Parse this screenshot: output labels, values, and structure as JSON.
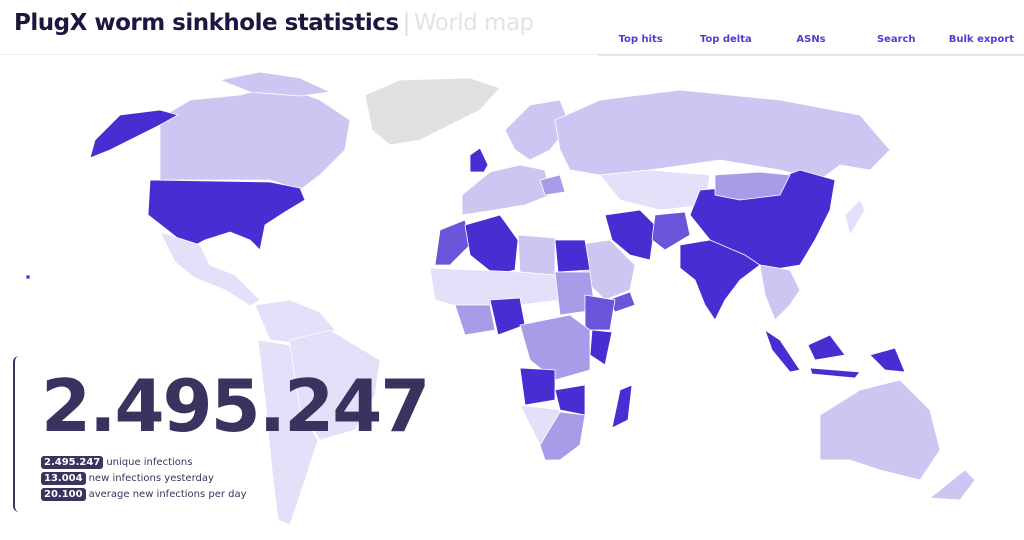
{
  "header": {
    "title": "PlugX worm sinkhole statistics",
    "separator": "|",
    "subtitle": "World map"
  },
  "nav": [
    {
      "label": "Top hits"
    },
    {
      "label": "Top delta"
    },
    {
      "label": "ASNs"
    },
    {
      "label": "Search"
    },
    {
      "label": "Bulk export"
    }
  ],
  "stats": {
    "total": "2.495.247",
    "rows": [
      {
        "value": "2.495.247",
        "label": "unique infections"
      },
      {
        "value": "13.004",
        "label": "new infections yesterday"
      },
      {
        "value": "20.100",
        "label": "average new infections per day"
      }
    ]
  },
  "map": {
    "colors": {
      "highest": "#4a2dd2",
      "high": "#6a55da",
      "medium": "#a89ce8",
      "low": "#cdc6f3",
      "lowest": "#e3e0f9",
      "no_data": "#e0e0e0"
    }
  }
}
